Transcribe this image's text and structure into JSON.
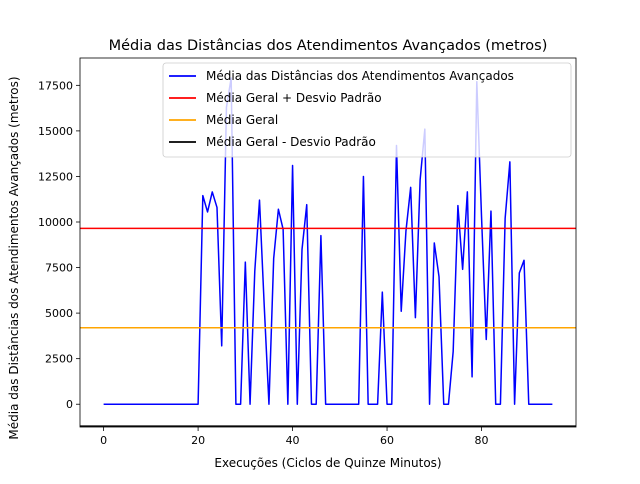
{
  "chart_data": {
    "type": "line",
    "title": "Média das Distâncias dos Atendimentos Avançados (metros)",
    "xlabel": "Execuções (Ciclos de Quinze Minutos)",
    "ylabel": "Média das Distâncias dos Atendimentos Avançados (metros)",
    "xlim": [
      -5,
      100
    ],
    "ylim": [
      -1250,
      19000
    ],
    "xticks": [
      0,
      20,
      40,
      60,
      80
    ],
    "xtick_labels": [
      "0",
      "20",
      "40",
      "60",
      "80"
    ],
    "yticks": [
      0,
      2500,
      5000,
      7500,
      10000,
      12500,
      15000,
      17500
    ],
    "ytick_labels": [
      "0",
      "2500",
      "5000",
      "7500",
      "10000",
      "12500",
      "15000",
      "17500"
    ],
    "grid": false,
    "legend_position": "upper-right",
    "series": [
      {
        "name": "Média das Distâncias dos Atendimentos Avançados",
        "color": "#0000ff",
        "x": [
          0,
          1,
          2,
          3,
          4,
          5,
          6,
          7,
          8,
          9,
          10,
          11,
          12,
          13,
          14,
          15,
          16,
          17,
          18,
          19,
          20,
          21,
          22,
          23,
          24,
          25,
          26,
          27,
          28,
          29,
          30,
          31,
          32,
          33,
          34,
          35,
          36,
          37,
          38,
          39,
          40,
          41,
          42,
          43,
          44,
          45,
          46,
          47,
          48,
          49,
          50,
          51,
          52,
          53,
          54,
          55,
          56,
          57,
          58,
          59,
          60,
          61,
          62,
          63,
          64,
          65,
          66,
          67,
          68,
          69,
          70,
          71,
          72,
          73,
          74,
          75,
          76,
          77,
          78,
          79,
          80,
          81,
          82,
          83,
          84,
          85,
          86,
          87,
          88,
          89,
          90,
          91,
          92,
          93,
          94,
          95
        ],
        "y": [
          0,
          0,
          0,
          0,
          0,
          0,
          0,
          0,
          0,
          0,
          0,
          0,
          0,
          0,
          0,
          0,
          0,
          0,
          0,
          0,
          0,
          11450,
          10550,
          11650,
          10800,
          3200,
          16300,
          17900,
          0,
          0,
          7800,
          0,
          7300,
          11200,
          5400,
          0,
          8000,
          10700,
          9600,
          0,
          13100,
          0,
          8500,
          10950,
          0,
          0,
          9250,
          0,
          0,
          0,
          0,
          0,
          0,
          0,
          0,
          12500,
          0,
          0,
          0,
          6150,
          0,
          0,
          14200,
          5100,
          9500,
          11900,
          4750,
          12300,
          15100,
          0,
          8850,
          7000,
          0,
          0,
          2900,
          10900,
          7400,
          11650,
          1500,
          17700,
          10300,
          3550,
          10600,
          0,
          0,
          10200,
          13300,
          0,
          7200,
          7900,
          0,
          0,
          0,
          0,
          0,
          0
        ]
      },
      {
        "name": "Média Geral + Desvio Padrão",
        "color": "#ff0000",
        "hline": 9650
      },
      {
        "name": "Média Geral",
        "color": "#ffa500",
        "hline": 4200
      },
      {
        "name": "Média Geral - Desvio Padrão",
        "color": "#000000",
        "hline": -1200
      }
    ]
  }
}
